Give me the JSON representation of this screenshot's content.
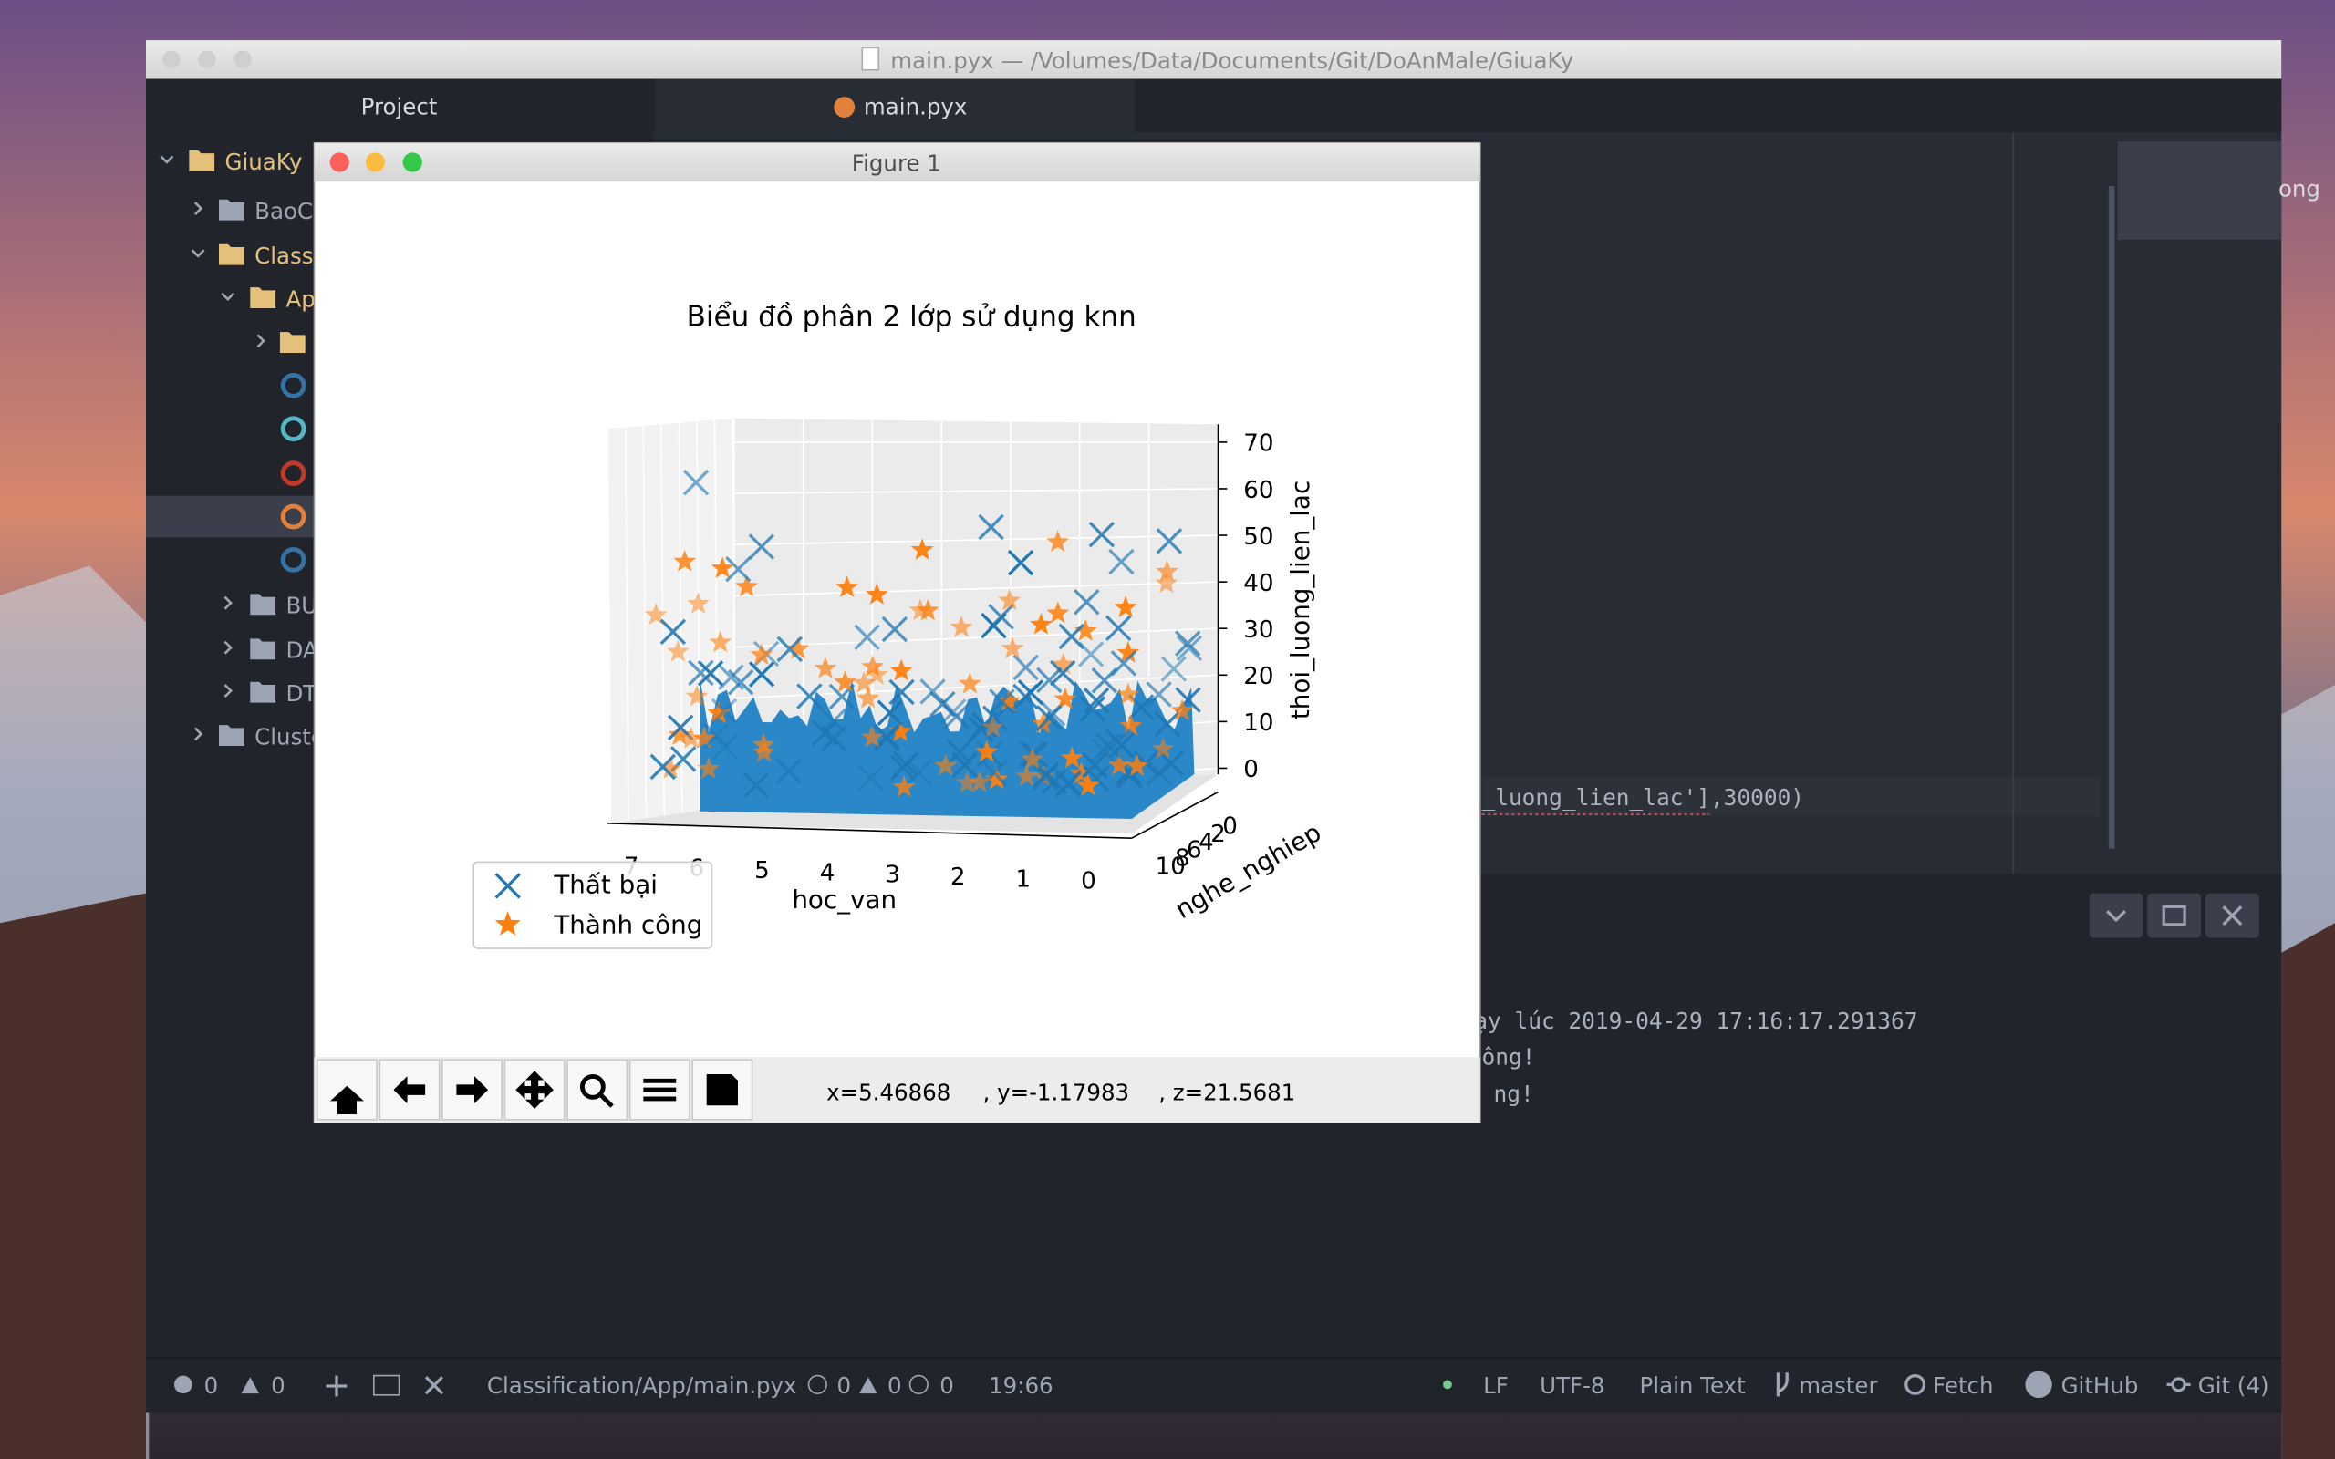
{
  "window": {
    "title": "main.pyx — /Volumes/Data/Documents/Git/DoAnMale/GiuaKy"
  },
  "sidebar": {
    "header": "Project",
    "items": [
      "GiuaKy",
      "BaoC",
      "Classi",
      "Ap",
      "BU",
      "DA",
      "DT",
      "Cluste"
    ]
  },
  "tab": {
    "title": "main.pyx"
  },
  "editor": {
    "code_line": "_luong_lien_lac'],30000)",
    "minimap_label": "ong"
  },
  "terminal": {
    "lines": [
      "ạy lúc 2019-04-29 17:16:17.291367",
      "ông!",
      "ng!"
    ]
  },
  "figure": {
    "window_title": "Figure 1",
    "title": "Biểu đồ phân 2 lớp sử dụng knn",
    "x_label": "hoc_van",
    "y_label": "nghe_nghiep",
    "z_label": "thoi_luong_lien_lac",
    "x_ticks": [
      7,
      6,
      5,
      4,
      3,
      2,
      1,
      0
    ],
    "y_ticks": [
      10,
      8,
      6,
      4,
      2,
      0
    ],
    "z_ticks": [
      70,
      60,
      50,
      40,
      30,
      20,
      10,
      0
    ],
    "legend": [
      "Thất bại",
      "Thành công"
    ],
    "coords": [
      "x=5.46868",
      ", y=-1.17983",
      ", z=21.5681"
    ]
  },
  "status_bar": {
    "errors": "0",
    "warnings": "0",
    "file": "Classification/App/main.pyx",
    "lint": [
      "0",
      "0",
      "0"
    ],
    "cursor": "19:66",
    "line_ending": "LF",
    "encoding": "UTF-8",
    "grammar": "Plain Text",
    "branch": "master",
    "fetch": "Fetch",
    "github": "GitHub",
    "git": "Git (4)"
  }
}
